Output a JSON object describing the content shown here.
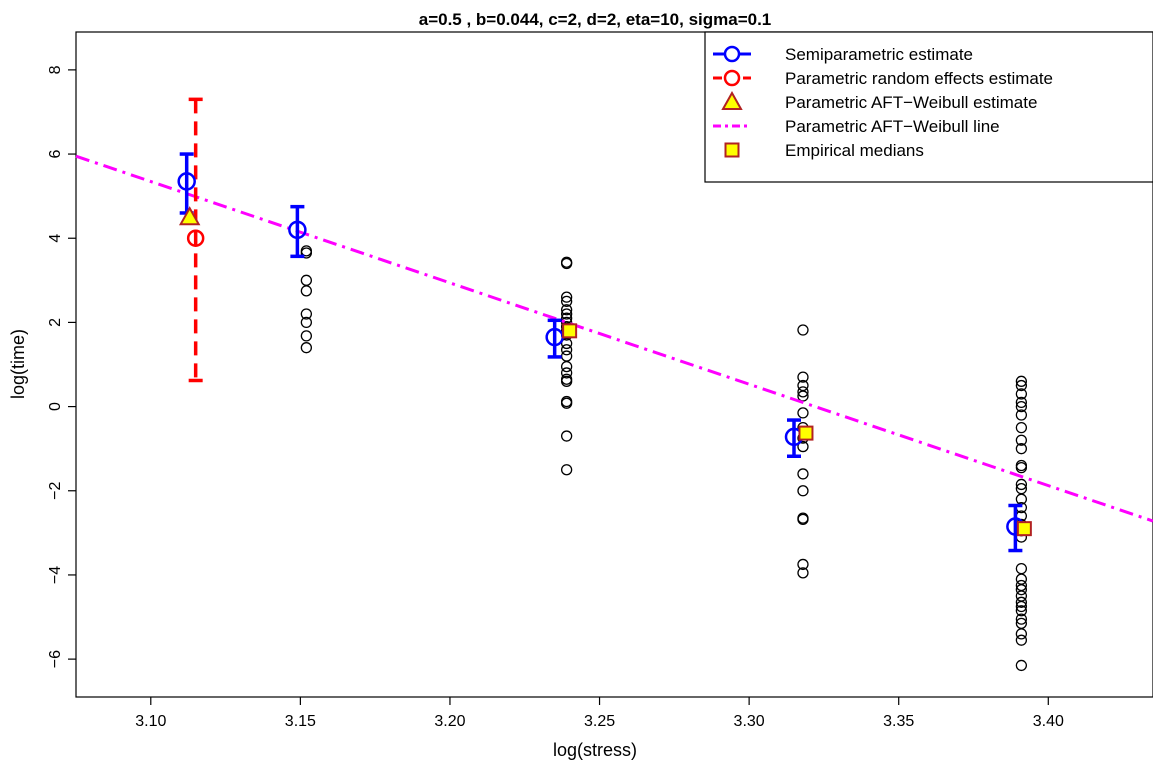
{
  "chart_data": {
    "type": "scatter",
    "title": "a=0.5 , b=0.044, c=2, d=2, eta=10, sigma=0.1",
    "xlabel": "log(stress)",
    "ylabel": "log(time)",
    "xlim": [
      3.075,
      3.435
    ],
    "ylim": [
      -6.9,
      8.9
    ],
    "xticks": [
      3.1,
      3.15,
      3.2,
      3.25,
      3.3,
      3.35,
      3.4
    ],
    "xtick_labels": [
      "3.10",
      "3.15",
      "3.20",
      "3.25",
      "3.30",
      "3.35",
      "3.40"
    ],
    "yticks": [
      -6,
      -4,
      -2,
      0,
      2,
      4,
      6,
      8
    ],
    "ytick_labels": [
      "−6",
      "−4",
      "−2",
      "0",
      "2",
      "4",
      "6",
      "8"
    ],
    "grid": false,
    "legend_position": "top-right",
    "legend": [
      {
        "label": "Semiparametric estimate",
        "color": "#0000ff",
        "symbol": "line-circle"
      },
      {
        "label": "Parametric  random effects estimate",
        "color": "#ff0000",
        "symbol": "dashed-circle"
      },
      {
        "label": "Parametric AFT−Weibull estimate",
        "color": "#b22222",
        "fill": "#ffff00",
        "symbol": "triangle"
      },
      {
        "label": "Parametric AFT−Weibull line",
        "color": "#ff00ff",
        "symbol": "dotdash"
      },
      {
        "label": "Empirical medians",
        "color": "#b22222",
        "fill": "#ffff00",
        "symbol": "square"
      }
    ],
    "aft_line": {
      "color": "#ff00ff",
      "x": [
        3.075,
        3.435
      ],
      "y": [
        5.95,
        -2.72
      ]
    },
    "semiparametric": {
      "color": "#0000ff",
      "points": [
        {
          "x": 3.112,
          "y": 5.35,
          "lower": 4.6,
          "upper": 6.0
        },
        {
          "x": 3.149,
          "y": 4.2,
          "lower": 3.57,
          "upper": 4.75
        },
        {
          "x": 3.235,
          "y": 1.65,
          "lower": 1.18,
          "upper": 2.05
        },
        {
          "x": 3.315,
          "y": -0.72,
          "lower": -1.18,
          "upper": -0.32
        },
        {
          "x": 3.389,
          "y": -2.85,
          "lower": -3.42,
          "upper": -2.35
        }
      ]
    },
    "random_effects": {
      "color": "#ff0000",
      "x": 3.115,
      "y": 4.0,
      "lower": 0.62,
      "upper": 7.3
    },
    "aft_estimate": {
      "x": 3.113,
      "y": 4.5,
      "color": "#b22222",
      "fill": "#ffff00"
    },
    "empirical_medians": {
      "color": "#b22222",
      "fill": "#ffff00",
      "points": [
        {
          "x": 3.24,
          "y": 1.8
        },
        {
          "x": 3.319,
          "y": -0.63
        },
        {
          "x": 3.392,
          "y": -2.9
        }
      ]
    },
    "observations": [
      {
        "x": 3.152,
        "y": [
          3.7,
          3.65,
          3.0,
          2.75,
          2.2,
          2.0,
          1.68,
          1.4
        ]
      },
      {
        "x": 3.239,
        "y": [
          3.43,
          3.4,
          2.6,
          2.5,
          2.3,
          2.2,
          2.1,
          2.0,
          1.9,
          1.8,
          1.7,
          1.5,
          1.35,
          1.2,
          0.95,
          0.8,
          0.65,
          0.6,
          0.12,
          0.08,
          -0.7,
          -1.5
        ]
      },
      {
        "x": 3.318,
        "y": [
          1.82,
          0.7,
          0.5,
          0.35,
          0.25,
          -0.15,
          -0.5,
          -0.75,
          -0.95,
          -1.6,
          -2.0,
          -2.65,
          -2.68,
          -3.75,
          -3.95
        ]
      },
      {
        "x": 3.391,
        "y": [
          0.6,
          0.5,
          0.3,
          0.1,
          0.0,
          -0.2,
          -0.5,
          -0.8,
          -1.0,
          -1.4,
          -1.45,
          -1.85,
          -1.95,
          -2.2,
          -2.4,
          -2.6,
          -2.8,
          -2.95,
          -3.1,
          -3.85,
          -4.1,
          -4.25,
          -4.35,
          -4.5,
          -4.65,
          -4.75,
          -4.85,
          -5.05,
          -5.15,
          -5.4,
          -5.55,
          -6.15
        ]
      }
    ]
  }
}
